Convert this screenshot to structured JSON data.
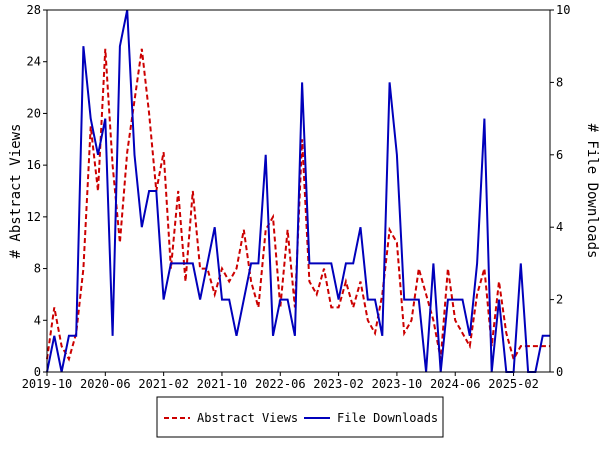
{
  "chart_data": {
    "type": "line",
    "x": [
      "2019-10",
      "2019-11",
      "2019-12",
      "2020-01",
      "2020-02",
      "2020-03",
      "2020-04",
      "2020-05",
      "2020-06",
      "2020-07",
      "2020-08",
      "2020-09",
      "2020-10",
      "2020-11",
      "2020-12",
      "2021-01",
      "2021-02",
      "2021-03",
      "2021-04",
      "2021-05",
      "2021-06",
      "2021-07",
      "2021-08",
      "2021-09",
      "2021-10",
      "2021-11",
      "2021-12",
      "2022-01",
      "2022-02",
      "2022-03",
      "2022-04",
      "2022-05",
      "2022-06",
      "2022-07",
      "2022-08",
      "2022-09",
      "2022-10",
      "2022-11",
      "2022-12",
      "2023-01",
      "2023-02",
      "2023-03",
      "2023-04",
      "2023-05",
      "2023-06",
      "2023-07",
      "2023-08",
      "2023-09",
      "2023-10",
      "2023-11",
      "2023-12",
      "2024-01",
      "2024-02",
      "2024-03",
      "2024-04",
      "2024-05",
      "2024-06",
      "2024-07",
      "2024-08",
      "2024-09",
      "2024-10",
      "2024-11",
      "2024-12",
      "2025-01",
      "2025-02",
      "2025-03",
      "2025-04",
      "2025-05",
      "2025-06",
      "2025-07"
    ],
    "xticks": [
      "2019-10",
      "2020-06",
      "2021-02",
      "2021-10",
      "2022-06",
      "2023-02",
      "2023-10",
      "2024-06",
      "2025-02"
    ],
    "ylabel": "# Abstract Views",
    "y2label": "# File Downloads",
    "ylim": [
      0,
      28
    ],
    "yticks": [
      0,
      4,
      8,
      12,
      16,
      20,
      24,
      28
    ],
    "y2lim": [
      0,
      10
    ],
    "y2ticks": [
      0,
      2,
      4,
      6,
      8,
      10
    ],
    "legend": "bottom",
    "series": [
      {
        "name": "Abstract Views",
        "color": "#cc0000",
        "linestyle": "dashed",
        "axis": "y",
        "values": [
          1,
          5,
          2,
          1,
          3,
          8,
          19,
          14,
          25,
          16,
          10,
          17,
          21,
          25,
          20,
          14,
          17,
          8,
          14,
          7,
          14,
          8,
          8,
          6,
          8,
          7,
          8,
          11,
          7,
          5,
          11,
          12,
          5,
          11,
          5,
          18,
          7,
          6,
          8,
          5,
          5,
          7,
          5,
          7,
          4,
          3,
          6,
          11,
          10,
          3,
          4,
          8,
          6,
          4,
          1,
          8,
          4,
          3,
          2,
          6,
          8,
          2,
          7,
          3,
          1,
          2,
          2,
          2,
          2,
          2
        ]
      },
      {
        "name": "File Downloads",
        "color": "#0000bb",
        "linestyle": "solid",
        "axis": "y2",
        "values": [
          0,
          1,
          0,
          1,
          1,
          9,
          7,
          6,
          7,
          1,
          9,
          10,
          6,
          4,
          5,
          5,
          2,
          3,
          3,
          3,
          3,
          2,
          3,
          4,
          2,
          2,
          1,
          2,
          3,
          3,
          6,
          1,
          2,
          2,
          1,
          8,
          3,
          3,
          3,
          3,
          2,
          3,
          3,
          4,
          2,
          2,
          1,
          8,
          6,
          2,
          2,
          2,
          0,
          3,
          0,
          2,
          2,
          2,
          1,
          3,
          7,
          0,
          2,
          0,
          0,
          3,
          0,
          0,
          1,
          1
        ]
      }
    ]
  }
}
